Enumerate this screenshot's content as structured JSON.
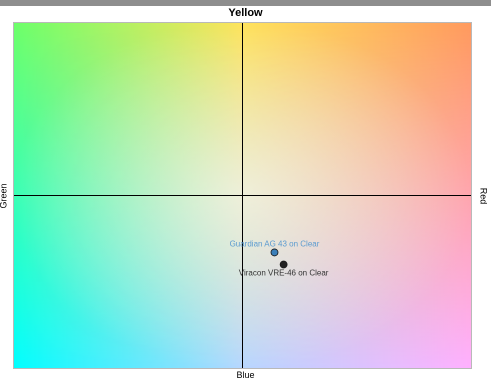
{
  "chart_data": {
    "type": "scatter",
    "axes": {
      "top": "Yellow",
      "bottom": "Blue",
      "left": "Green",
      "right": "Red"
    },
    "xlim": [
      -1,
      1
    ],
    "ylim": [
      -1,
      1
    ],
    "grid": false,
    "center_crosshair": true,
    "points": [
      {
        "label": "Guardian AG 43 on Clear",
        "x": 0.14,
        "y": -0.33,
        "color": "#3b7fb8",
        "label_color": "#5b9bd0"
      },
      {
        "label": "Viracon VRE-46 on Clear",
        "x": 0.18,
        "y": -0.4,
        "color": "#222222",
        "label_color": "#333333"
      }
    ],
    "background_corner_colors": {
      "top_left": "#7dff5c",
      "top_center": "#ffe060",
      "top_right": "#ff9b5e",
      "middle_left": "#9dffd0",
      "center": "#ffffff",
      "middle_right": "#ff9ad6",
      "bottom_left": "#00ffff",
      "bottom_center": "#b3d5ff",
      "bottom_right": "#ffb0ff"
    }
  }
}
